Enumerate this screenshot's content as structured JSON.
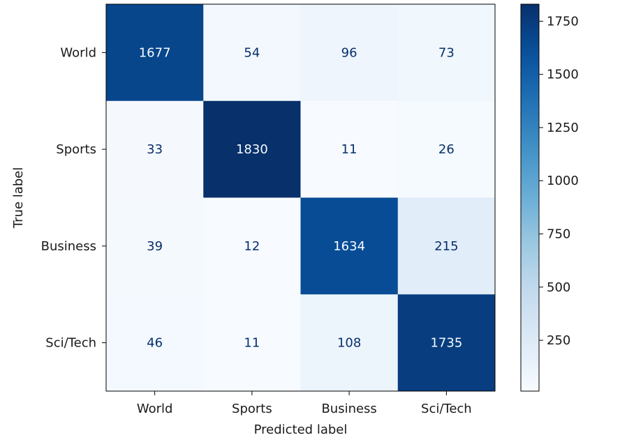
{
  "chart_data": {
    "type": "heatmap",
    "title": "",
    "xlabel": "Predicted label",
    "ylabel": "True label",
    "categories_x": [
      "World",
      "Sports",
      "Business",
      "Sci/Tech"
    ],
    "categories_y": [
      "World",
      "Sports",
      "Business",
      "Sci/Tech"
    ],
    "values": [
      [
        1677,
        54,
        96,
        73
      ],
      [
        33,
        1830,
        11,
        26
      ],
      [
        39,
        12,
        1634,
        215
      ],
      [
        46,
        11,
        108,
        1735
      ]
    ],
    "colormap": "Blues",
    "color_range": [
      11,
      1830
    ],
    "colorbar_ticks": [
      250,
      500,
      750,
      1000,
      1250,
      1500,
      1750
    ]
  }
}
